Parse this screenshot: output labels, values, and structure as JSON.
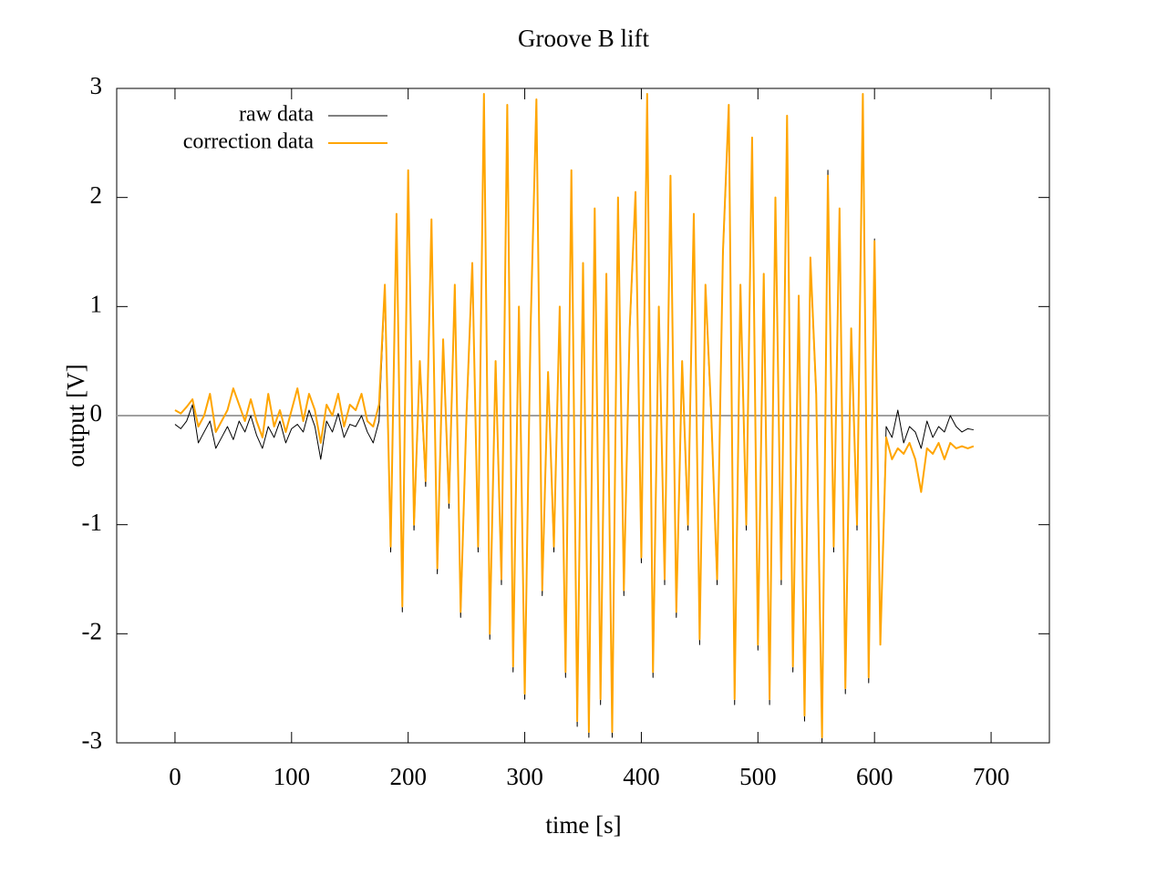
{
  "chart_data": {
    "type": "line",
    "title": "Groove B lift",
    "xlabel": "time [s]",
    "ylabel": "output [V]",
    "x": [
      0,
      5,
      10,
      15,
      20,
      25,
      30,
      35,
      40,
      45,
      50,
      55,
      60,
      65,
      70,
      75,
      80,
      85,
      90,
      95,
      100,
      105,
      110,
      115,
      120,
      125,
      130,
      135,
      140,
      145,
      150,
      155,
      160,
      165,
      170,
      175,
      180,
      185,
      190,
      195,
      200,
      205,
      210,
      215,
      220,
      225,
      230,
      235,
      240,
      245,
      250,
      255,
      260,
      265,
      270,
      275,
      280,
      285,
      290,
      295,
      300,
      305,
      310,
      315,
      320,
      325,
      330,
      335,
      340,
      345,
      350,
      355,
      360,
      365,
      370,
      375,
      380,
      385,
      390,
      395,
      400,
      405,
      410,
      415,
      420,
      425,
      430,
      435,
      440,
      445,
      450,
      455,
      460,
      465,
      470,
      475,
      480,
      485,
      490,
      495,
      500,
      505,
      510,
      515,
      520,
      525,
      530,
      535,
      540,
      545,
      550,
      555,
      560,
      565,
      570,
      575,
      580,
      585,
      590,
      595,
      600,
      605,
      610,
      615,
      620,
      625,
      630,
      635,
      640,
      645,
      650,
      655,
      660,
      665,
      670,
      675,
      680,
      685
    ],
    "series": [
      {
        "name": "raw data",
        "color": "#000000",
        "width": 1,
        "values": [
          -0.08,
          -0.12,
          -0.05,
          0.1,
          -0.25,
          -0.15,
          -0.05,
          -0.3,
          -0.2,
          -0.1,
          -0.22,
          -0.05,
          -0.15,
          0.0,
          -0.18,
          -0.3,
          -0.1,
          -0.2,
          -0.05,
          -0.25,
          -0.12,
          -0.08,
          -0.15,
          0.05,
          -0.1,
          -0.4,
          -0.05,
          -0.15,
          0.02,
          -0.2,
          -0.08,
          -0.1,
          0.0,
          -0.15,
          -0.25,
          -0.05,
          1.15,
          -1.25,
          1.8,
          -1.8,
          2.2,
          -1.05,
          0.45,
          -0.65,
          1.75,
          -1.45,
          0.65,
          -0.85,
          1.15,
          -1.85,
          -0.05,
          1.35,
          -1.25,
          2.9,
          -2.05,
          0.45,
          -1.55,
          2.8,
          -2.35,
          0.95,
          -2.6,
          0.75,
          2.85,
          -1.65,
          0.35,
          -1.25,
          0.95,
          -2.4,
          2.2,
          -2.85,
          1.35,
          -2.95,
          1.85,
          -2.65,
          1.25,
          -2.95,
          1.95,
          -1.65,
          0.75,
          2.0,
          -1.35,
          2.9,
          -2.4,
          0.95,
          -1.55,
          2.15,
          -1.85,
          0.45,
          -1.05,
          1.8,
          -2.1,
          1.15,
          -0.05,
          -1.55,
          1.45,
          2.8,
          -2.65,
          1.15,
          -1.05,
          2.5,
          -2.15,
          1.25,
          -2.65,
          1.95,
          -1.55,
          2.7,
          -2.35,
          1.05,
          -2.8,
          1.4,
          0.15,
          -3.0,
          2.25,
          -1.25,
          1.85,
          -2.55,
          0.75,
          -1.05,
          2.9,
          -2.45,
          1.62,
          -2.1,
          -0.1,
          -0.2,
          0.05,
          -0.25,
          -0.1,
          -0.15,
          -0.3,
          -0.05,
          -0.2,
          -0.1,
          -0.15,
          0.0,
          -0.1,
          -0.15,
          -0.12,
          -0.13
        ]
      },
      {
        "name": "correction data",
        "color": "#ffa500",
        "width": 2,
        "values": [
          0.05,
          0.02,
          0.08,
          0.15,
          -0.1,
          0.0,
          0.2,
          -0.15,
          -0.05,
          0.05,
          0.25,
          0.1,
          -0.05,
          0.15,
          -0.05,
          -0.2,
          0.2,
          -0.1,
          0.05,
          -0.15,
          0.05,
          0.25,
          -0.05,
          0.2,
          0.05,
          -0.25,
          0.1,
          0.0,
          0.2,
          -0.1,
          0.1,
          0.05,
          0.2,
          -0.05,
          -0.1,
          0.1,
          1.2,
          -1.2,
          1.85,
          -1.75,
          2.25,
          -1.0,
          0.5,
          -0.6,
          1.8,
          -1.4,
          0.7,
          -0.8,
          1.2,
          -1.8,
          0.0,
          1.4,
          -1.2,
          2.95,
          -2.0,
          0.5,
          -1.5,
          2.85,
          -2.3,
          1.0,
          -2.55,
          0.8,
          2.9,
          -1.6,
          0.4,
          -1.2,
          1.0,
          -2.35,
          2.25,
          -2.8,
          1.4,
          -2.9,
          1.9,
          -2.6,
          1.3,
          -2.9,
          2.0,
          -1.6,
          0.8,
          2.05,
          -1.3,
          2.95,
          -2.35,
          1.0,
          -1.5,
          2.2,
          -1.8,
          0.5,
          -1.0,
          1.85,
          -2.05,
          1.2,
          0.0,
          -1.5,
          1.5,
          2.85,
          -2.6,
          1.2,
          -1.0,
          2.55,
          -2.1,
          1.3,
          -2.6,
          2.0,
          -1.5,
          2.75,
          -2.3,
          1.1,
          -2.75,
          1.45,
          0.2,
          -2.95,
          2.2,
          -1.2,
          1.9,
          -2.5,
          0.8,
          -1.0,
          2.95,
          -2.4,
          1.6,
          -2.1,
          -0.2,
          -0.4,
          -0.3,
          -0.35,
          -0.25,
          -0.4,
          -0.7,
          -0.3,
          -0.35,
          -0.25,
          -0.4,
          -0.25,
          -0.3,
          -0.28,
          -0.3,
          -0.28
        ]
      }
    ],
    "xlim": [
      -50,
      750
    ],
    "xticks": [
      0,
      100,
      200,
      300,
      400,
      500,
      600,
      700
    ],
    "ylim": [
      -3,
      3
    ],
    "yticks": [
      -3,
      -2,
      -1,
      0,
      1,
      2,
      3
    ],
    "zeroaxis": true,
    "legend": "top-left"
  }
}
